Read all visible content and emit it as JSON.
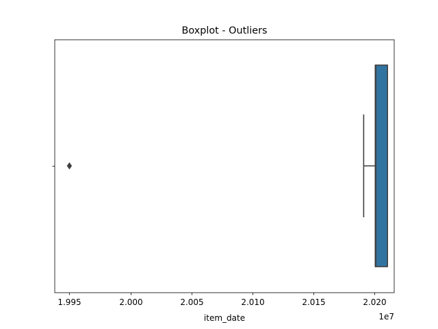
{
  "chart_data": {
    "type": "boxplot",
    "orientation": "horizontal",
    "title": "Boxplot - Outliers",
    "xlabel": "item_date",
    "ylabel": "",
    "x_offset_text": "1e7",
    "xlim": [
      19938000,
      20216000
    ],
    "x_ticks": [
      19950000,
      20000000,
      20050000,
      20100000,
      20150000,
      20200000
    ],
    "x_tick_labels": [
      "1.995",
      "2.000",
      "2.005",
      "2.010",
      "2.015",
      "2.020"
    ],
    "grid": false,
    "box": {
      "whisker_low": 20191000,
      "q1": 20200500,
      "median": 20201000,
      "q3": 20210500,
      "whisker_high": 20210500,
      "fliers": [
        19950000
      ],
      "color": "#3274a1",
      "edge_color": "#3f3f3f"
    }
  }
}
